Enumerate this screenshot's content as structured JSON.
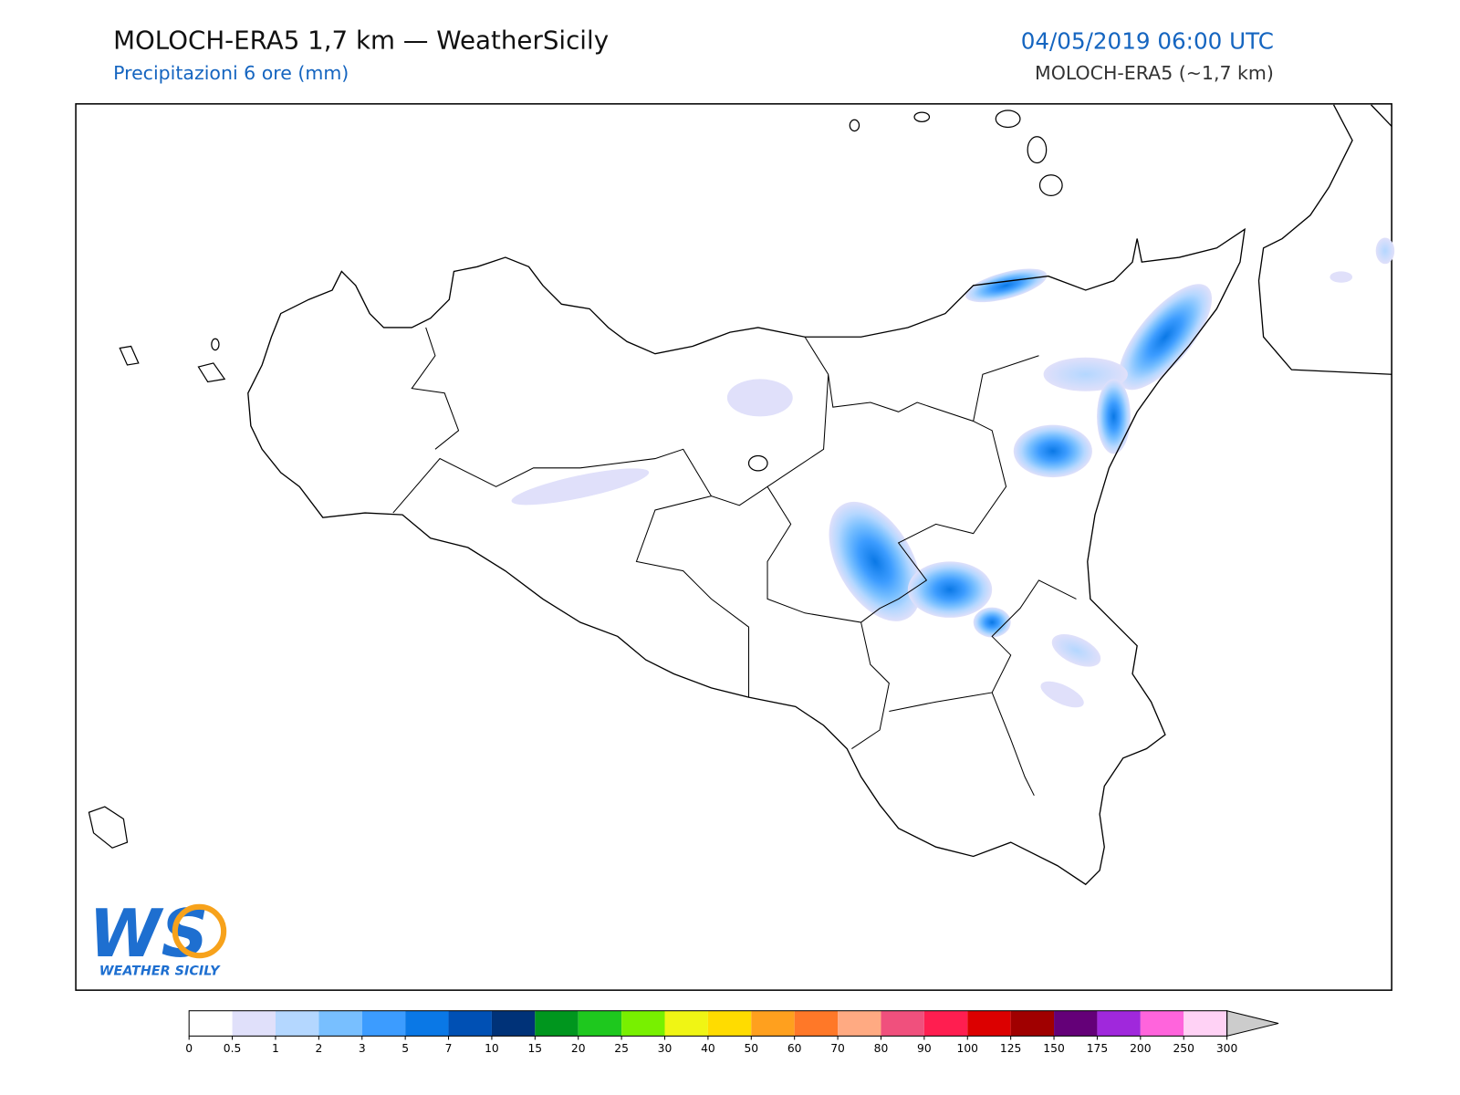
{
  "header": {
    "title": "MOLOCH-ERA5 1,7 km — WeatherSicily",
    "subtitle": "Precipitazioni 6 ore (mm)",
    "datetime": "04/05/2019 06:00 UTC",
    "model": "MOLOCH-ERA5 (~1,7 km)"
  },
  "colorbar": {
    "ticks": [
      0,
      0.5,
      1,
      2,
      3,
      5,
      7,
      10,
      15,
      20,
      25,
      30,
      40,
      50,
      60,
      70,
      80,
      90,
      100,
      125,
      150,
      175,
      200,
      250,
      300
    ],
    "colors": [
      "#ffffff",
      "#e0e0fa",
      "#b4d7ff",
      "#78bfff",
      "#3c9cff",
      "#0a78e6",
      "#0050b4",
      "#003278",
      "#00961e",
      "#1ec81e",
      "#78f000",
      "#f0f514",
      "#ffdc00",
      "#ffa01e",
      "#ff7828",
      "#ffaa82",
      "#f0507d",
      "#ff1e50",
      "#dc0000",
      "#a00000",
      "#640078",
      "#a028dc",
      "#ff64dc",
      "#ffd2f5"
    ]
  },
  "logo": {
    "mark": "WS",
    "text": "WEATHER SICILY"
  }
}
